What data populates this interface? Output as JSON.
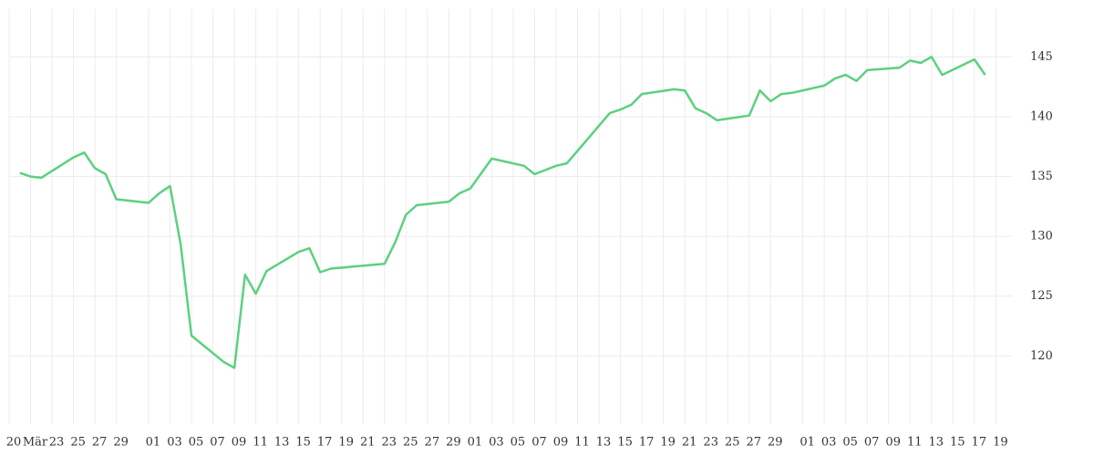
{
  "chart_data": {
    "type": "line",
    "color": "#5bd17f",
    "grid": true,
    "x": [
      0,
      1,
      2,
      5,
      6,
      7,
      8,
      9,
      12,
      13,
      14,
      15,
      16,
      19,
      20,
      21,
      22,
      23,
      26,
      27,
      28,
      29,
      34,
      35,
      36,
      37,
      40,
      41,
      42,
      44,
      47,
      48,
      50,
      51,
      55,
      56,
      57,
      58,
      61,
      62,
      63,
      64,
      65,
      68,
      69,
      70,
      71,
      72,
      75,
      76,
      77,
      78,
      79,
      82,
      83,
      84,
      85,
      86,
      89,
      90
    ],
    "values": [
      135.3,
      135.0,
      134.9,
      136.6,
      137.0,
      135.7,
      135.2,
      133.1,
      132.8,
      133.6,
      134.2,
      129.3,
      121.7,
      119.5,
      119.0,
      126.8,
      125.2,
      127.1,
      128.7,
      129.0,
      127.0,
      127.3,
      127.7,
      129.5,
      131.8,
      132.6,
      132.9,
      133.6,
      134.0,
      136.5,
      135.9,
      135.2,
      135.9,
      136.1,
      140.3,
      140.6,
      141.0,
      141.9,
      142.3,
      142.2,
      140.7,
      140.3,
      139.7,
      140.1,
      142.2,
      141.3,
      141.9,
      142.0,
      142.6,
      143.2,
      143.5,
      143.0,
      143.9,
      144.1,
      144.7,
      144.5,
      145.0,
      143.5,
      144.8,
      143.5
    ],
    "xlim": [
      -1,
      92.5
    ],
    "xticks": [
      {
        "value": -1,
        "label": "20"
      },
      {
        "value": 1,
        "label": "Mär"
      },
      {
        "value": 3,
        "label": "23"
      },
      {
        "value": 5,
        "label": "25"
      },
      {
        "value": 7,
        "label": "27"
      },
      {
        "value": 9,
        "label": "29"
      },
      {
        "value": 12,
        "label": "01"
      },
      {
        "value": 14,
        "label": "03"
      },
      {
        "value": 16,
        "label": "05"
      },
      {
        "value": 18,
        "label": "07"
      },
      {
        "value": 20,
        "label": "09"
      },
      {
        "value": 22,
        "label": "11"
      },
      {
        "value": 24,
        "label": "13"
      },
      {
        "value": 26,
        "label": "15"
      },
      {
        "value": 28,
        "label": "17"
      },
      {
        "value": 30,
        "label": "19"
      },
      {
        "value": 32,
        "label": "21"
      },
      {
        "value": 34,
        "label": "23"
      },
      {
        "value": 36,
        "label": "25"
      },
      {
        "value": 38,
        "label": "27"
      },
      {
        "value": 40,
        "label": "29"
      },
      {
        "value": 42,
        "label": "01"
      },
      {
        "value": 44,
        "label": "03"
      },
      {
        "value": 46,
        "label": "05"
      },
      {
        "value": 48,
        "label": "07"
      },
      {
        "value": 50,
        "label": "09"
      },
      {
        "value": 52,
        "label": "11"
      },
      {
        "value": 54,
        "label": "13"
      },
      {
        "value": 56,
        "label": "15"
      },
      {
        "value": 58,
        "label": "17"
      },
      {
        "value": 60,
        "label": "19"
      },
      {
        "value": 62,
        "label": "21"
      },
      {
        "value": 64,
        "label": "23"
      },
      {
        "value": 66,
        "label": "25"
      },
      {
        "value": 68,
        "label": "27"
      },
      {
        "value": 70,
        "label": "29"
      },
      {
        "value": 73,
        "label": "01"
      },
      {
        "value": 75,
        "label": "03"
      },
      {
        "value": 77,
        "label": "05"
      },
      {
        "value": 79,
        "label": "07"
      },
      {
        "value": 81,
        "label": "09"
      },
      {
        "value": 83,
        "label": "11"
      },
      {
        "value": 85,
        "label": "13"
      },
      {
        "value": 87,
        "label": "15"
      },
      {
        "value": 89,
        "label": "17"
      },
      {
        "value": 91,
        "label": "19"
      }
    ],
    "ylim": [
      114.3,
      149
    ],
    "yticks": [
      120,
      125,
      130,
      135,
      140,
      145
    ]
  }
}
